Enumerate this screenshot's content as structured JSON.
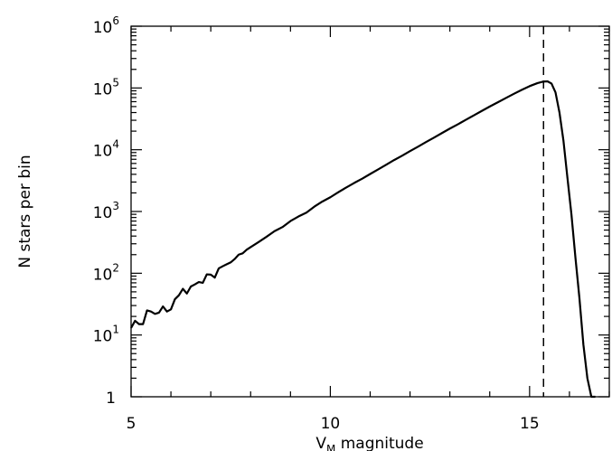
{
  "chart_data": {
    "type": "line",
    "xlabel": {
      "main": "V",
      "sub": "M",
      "rest": " magnitude"
    },
    "ylabel": "N stars per bin",
    "xlim": [
      5,
      17
    ],
    "ylim": [
      1,
      1000000
    ],
    "yscale": "log",
    "grid": false,
    "xticks": [
      {
        "value": 5,
        "label": "5"
      },
      {
        "value": 10,
        "label": "10"
      },
      {
        "value": 15,
        "label": "15"
      }
    ],
    "yticks": [
      {
        "value": 1,
        "base": "1",
        "exp": ""
      },
      {
        "value": 10,
        "base": "10",
        "exp": "1"
      },
      {
        "value": 100,
        "base": "10",
        "exp": "2"
      },
      {
        "value": 1000,
        "base": "10",
        "exp": "3"
      },
      {
        "value": 10000,
        "base": "10",
        "exp": "4"
      },
      {
        "value": 100000,
        "base": "10",
        "exp": "5"
      },
      {
        "value": 1000000,
        "base": "10",
        "exp": "6"
      }
    ],
    "vline": {
      "x": 15.35,
      "style": "dashed"
    },
    "series": [
      {
        "x": [
          5.0,
          5.1,
          5.2,
          5.3,
          5.4,
          5.5,
          5.6,
          5.7,
          5.8,
          5.9,
          6.0,
          6.1,
          6.2,
          6.3,
          6.4,
          6.5,
          6.6,
          6.7,
          6.8,
          6.9,
          7.0,
          7.1,
          7.2,
          7.3,
          7.4,
          7.5,
          7.6,
          7.7,
          7.8,
          7.9,
          8.0,
          8.2,
          8.4,
          8.6,
          8.8,
          9.0,
          9.2,
          9.4,
          9.6,
          9.8,
          10.0,
          10.2,
          10.4,
          10.6,
          10.8,
          11.0,
          11.2,
          11.4,
          11.6,
          11.8,
          12.0,
          12.2,
          12.4,
          12.6,
          12.8,
          13.0,
          13.2,
          13.4,
          13.6,
          13.8,
          14.0,
          14.2,
          14.4,
          14.6,
          14.8,
          15.0,
          15.2,
          15.35,
          15.45,
          15.55,
          15.65,
          15.75,
          15.85,
          15.95,
          16.05,
          16.15,
          16.25,
          16.35,
          16.45,
          16.55,
          16.65
        ],
        "y": [
          13,
          17,
          15,
          15,
          25,
          24,
          22,
          23,
          29,
          24,
          26,
          38,
          44,
          56,
          47,
          61,
          66,
          72,
          70,
          96,
          95,
          85,
          120,
          130,
          140,
          150,
          170,
          200,
          210,
          240,
          265,
          320,
          390,
          480,
          560,
          700,
          830,
          960,
          1200,
          1450,
          1700,
          2050,
          2450,
          2900,
          3400,
          4050,
          4800,
          5700,
          6800,
          8000,
          9500,
          11200,
          13300,
          15700,
          18600,
          22000,
          25800,
          30500,
          36000,
          42500,
          50000,
          58500,
          68500,
          80000,
          93000,
          107000,
          120000,
          127000,
          128000,
          118000,
          85000,
          40000,
          14000,
          3500,
          900,
          180,
          40,
          7,
          2,
          1,
          1
        ]
      }
    ]
  }
}
